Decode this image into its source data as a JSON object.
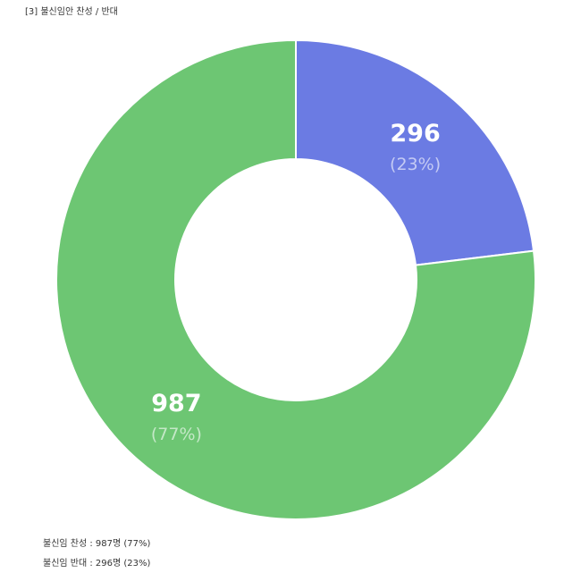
{
  "chart_data": {
    "type": "donut",
    "title": "[3] 불신임안 찬성 / 반대",
    "values": [
      296,
      987
    ],
    "colors": [
      "#6b7be3",
      "#6dc673"
    ],
    "percent_labels": [
      "(23%)",
      "(77%)"
    ],
    "notes": [
      "불신임 찬성 : 987명 (77%)",
      "불신임 반대 : 296명 (23%)"
    ]
  }
}
